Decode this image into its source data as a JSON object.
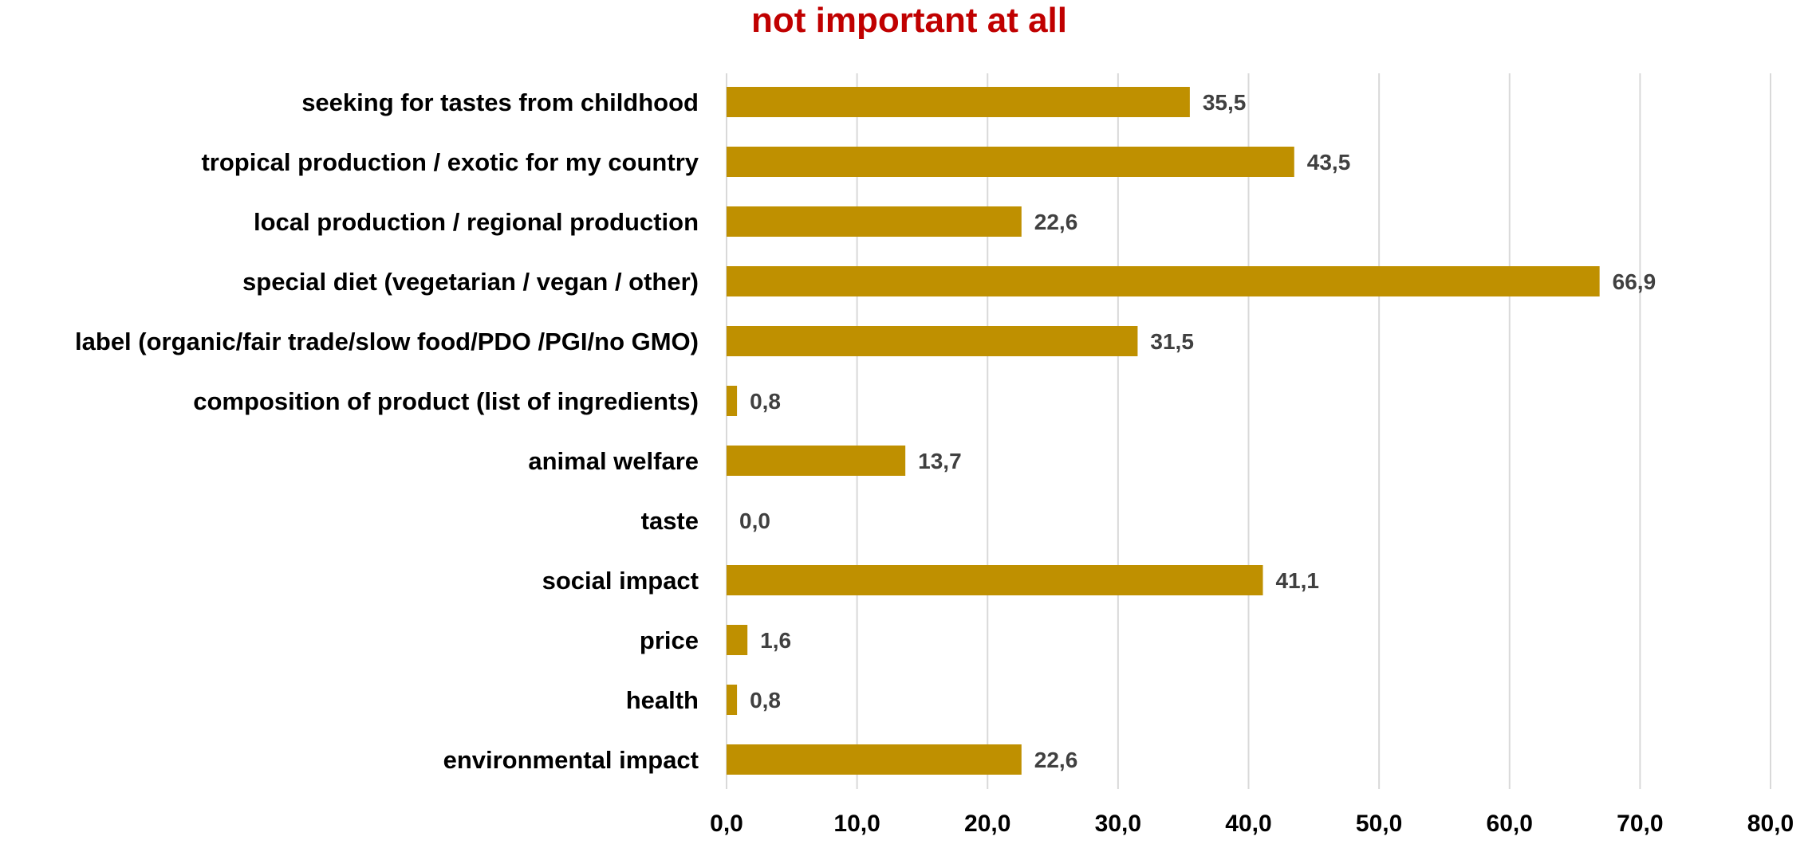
{
  "chart_data": {
    "type": "bar",
    "orientation": "horizontal",
    "title": "not important at all",
    "categories": [
      "seeking for tastes from childhood",
      "tropical production / exotic for my country",
      "local production / regional production",
      "special diet (vegetarian / vegan / other)",
      "label (organic/fair trade/slow food/PDO /PGI/no GMO)",
      "composition of product (list of ingredients)",
      "animal welfare",
      "taste",
      "social impact",
      "price",
      "health",
      "environmental impact"
    ],
    "values": [
      35.5,
      43.5,
      22.6,
      66.9,
      31.5,
      0.8,
      13.7,
      0.0,
      41.1,
      1.6,
      0.8,
      22.6
    ],
    "value_labels": [
      "35,5",
      "43,5",
      "22,6",
      "66,9",
      "31,5",
      "0,8",
      "13,7",
      "0,0",
      "41,1",
      "1,6",
      "0,8",
      "22,6"
    ],
    "x_ticks": [
      0,
      10,
      20,
      30,
      40,
      50,
      60,
      70,
      80
    ],
    "x_tick_labels": [
      "0,0",
      "10,0",
      "20,0",
      "30,0",
      "40,0",
      "50,0",
      "60,0",
      "70,0",
      "80,0"
    ],
    "xlim": [
      0,
      80
    ],
    "grid": true,
    "legend": "none",
    "xlabel": "",
    "ylabel": "",
    "colors": {
      "bar": "#BF9000",
      "title": "#C00000",
      "category_text": "#000000",
      "value_label": "#404040",
      "grid": "#D9D9D9"
    }
  }
}
